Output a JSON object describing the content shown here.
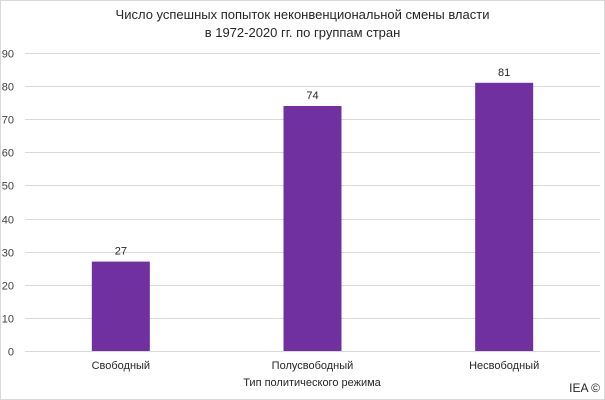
{
  "chart_data": {
    "type": "bar",
    "title_lines": [
      "Число успешных попыток неконвенциональной смены власти",
      "в 1972-2020 гг. по группам стран"
    ],
    "xlabel": "Тип политического режима",
    "ylabel": "",
    "categories": [
      "Свободный",
      "Полусвободный",
      "Несвободный"
    ],
    "values": [
      27,
      74,
      81
    ],
    "ylim": [
      0,
      90
    ],
    "yticks": [
      0,
      10,
      20,
      30,
      40,
      50,
      60,
      70,
      80,
      90
    ],
    "grid": true,
    "legend": "none",
    "bar_color": "#7030a0",
    "grid_color": "#d9d9d9"
  },
  "watermark": "IEA ©"
}
